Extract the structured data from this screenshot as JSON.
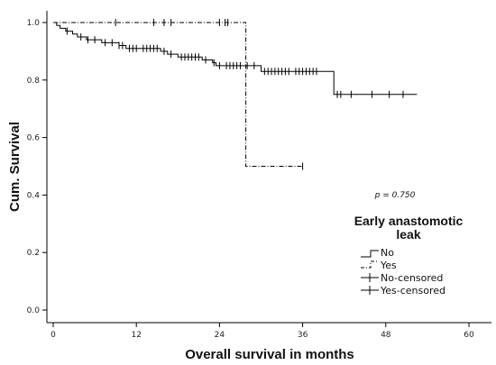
{
  "chart_data": {
    "type": "line",
    "title": "",
    "xlabel": "Overall survival in months",
    "ylabel": "Cum. Survival",
    "xlim": [
      0,
      60
    ],
    "ylim": [
      0,
      1.0
    ],
    "x_ticks": [
      0,
      12,
      24,
      36,
      48,
      60
    ],
    "x_tick_labels": [
      "0",
      "12",
      "24",
      "36",
      "48",
      "60"
    ],
    "y_ticks": [
      0,
      0.2,
      0.4,
      0.6,
      0.8,
      1.0
    ],
    "y_tick_labels": [
      "0.0",
      "0.2",
      "0.4",
      "0.6",
      "0.8",
      "1.0"
    ],
    "grid": false,
    "annotation": "p = 0.750",
    "legend": {
      "title_line1": "Early anastomotic",
      "title_line2": "leak",
      "placement": "right",
      "entries": [
        "No",
        "Yes",
        "No-censored",
        "Yes-censored"
      ]
    },
    "series": [
      {
        "name": "No",
        "style": "solid",
        "color": "#000000",
        "steps": [
          [
            0,
            1.0
          ],
          [
            0.5,
            0.99
          ],
          [
            1,
            0.98
          ],
          [
            1.8,
            0.97
          ],
          [
            2.8,
            0.96
          ],
          [
            3.5,
            0.95
          ],
          [
            4.8,
            0.94
          ],
          [
            7,
            0.93
          ],
          [
            9.5,
            0.92
          ],
          [
            10.5,
            0.91
          ],
          [
            15.5,
            0.9
          ],
          [
            16.5,
            0.89
          ],
          [
            18,
            0.88
          ],
          [
            21.5,
            0.87
          ],
          [
            23,
            0.86
          ],
          [
            23.5,
            0.85
          ],
          [
            30,
            0.83
          ],
          [
            40.5,
            0.75
          ],
          [
            52.5,
            0.75
          ]
        ],
        "censored": [
          2,
          4,
          5,
          6,
          7.5,
          8.5,
          9.5,
          10,
          11,
          11.5,
          12,
          13,
          13.5,
          14,
          14.5,
          15,
          16,
          17,
          18.5,
          19,
          19.5,
          20,
          20.5,
          21,
          22,
          23.2,
          24,
          25,
          25.5,
          26,
          26.5,
          27,
          28,
          29,
          30.5,
          31,
          31.5,
          32,
          32.5,
          33,
          33.5,
          34,
          35,
          35.5,
          36,
          36.5,
          37,
          37.5,
          38,
          41,
          41.5,
          43,
          46,
          48.5,
          50.5
        ]
      },
      {
        "name": "Yes",
        "style": "dashdot",
        "color": "#000000",
        "steps": [
          [
            0,
            1.0
          ],
          [
            27.8,
            0.5
          ],
          [
            36,
            0.5
          ]
        ],
        "censored": [
          9,
          14.5,
          16,
          17,
          24,
          24.8,
          25.2,
          36
        ]
      }
    ]
  }
}
